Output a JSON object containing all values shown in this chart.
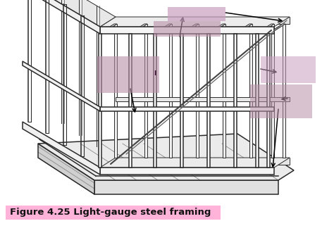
{
  "title": "Figure 4.25 Light-gauge steel framing",
  "title_color": "#111111",
  "title_fontsize": 9.5,
  "title_fontweight": "bold",
  "title_bg_color": "#ffb3d9",
  "bg_color": "#ffffff",
  "line_color": "#2a2a2a",
  "highlight_color_1": "#c9a0b8",
  "highlight_color_2": "#b890a8",
  "fig_width": 4.74,
  "fig_height": 3.31,
  "lw_main": 1.1,
  "lw_thin": 0.7,
  "lw_thick": 1.6
}
